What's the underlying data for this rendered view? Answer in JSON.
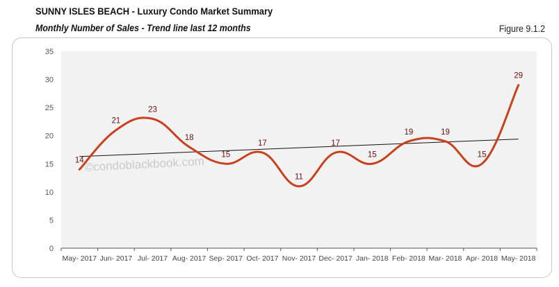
{
  "header": {
    "title": "SUNNY ISLES BEACH - Luxury Condo Market Summary",
    "subtitle": "Monthly Number of Sales - Trend line last 12 months",
    "figure_label": "Figure 9.1.2"
  },
  "watermark": "©condoblackbook.com",
  "colors": {
    "series": "#c8401c",
    "trendline": "#111111",
    "plot_bg": "#f2f2f2",
    "data_label": "#6b0f0f"
  },
  "chart_data": {
    "type": "line",
    "title": "Monthly Number of Sales - Trend line last 12 months",
    "xlabel": "",
    "ylabel": "",
    "categories": [
      "May- 2017",
      "Jun- 2017",
      "Jul- 2017",
      "Aug- 2017",
      "Sep- 2017",
      "Oct- 2017",
      "Nov- 2017",
      "Dec- 2017",
      "Jan- 2018",
      "Feb- 2018",
      "Mar- 2018",
      "Apr- 2018",
      "May- 2018"
    ],
    "series": [
      {
        "name": "Number of Sales",
        "values": [
          14,
          21,
          23,
          18,
          15,
          17,
          11,
          17,
          15,
          19,
          19,
          15,
          29
        ],
        "smooth": true,
        "data_labels": true
      }
    ],
    "trendline": {
      "type": "linear",
      "start": 16.3,
      "end": 19.4
    },
    "ylim": [
      0,
      35
    ],
    "yticks": [
      0,
      5,
      10,
      15,
      20,
      25,
      30,
      35
    ],
    "grid": false,
    "legend": "none"
  }
}
